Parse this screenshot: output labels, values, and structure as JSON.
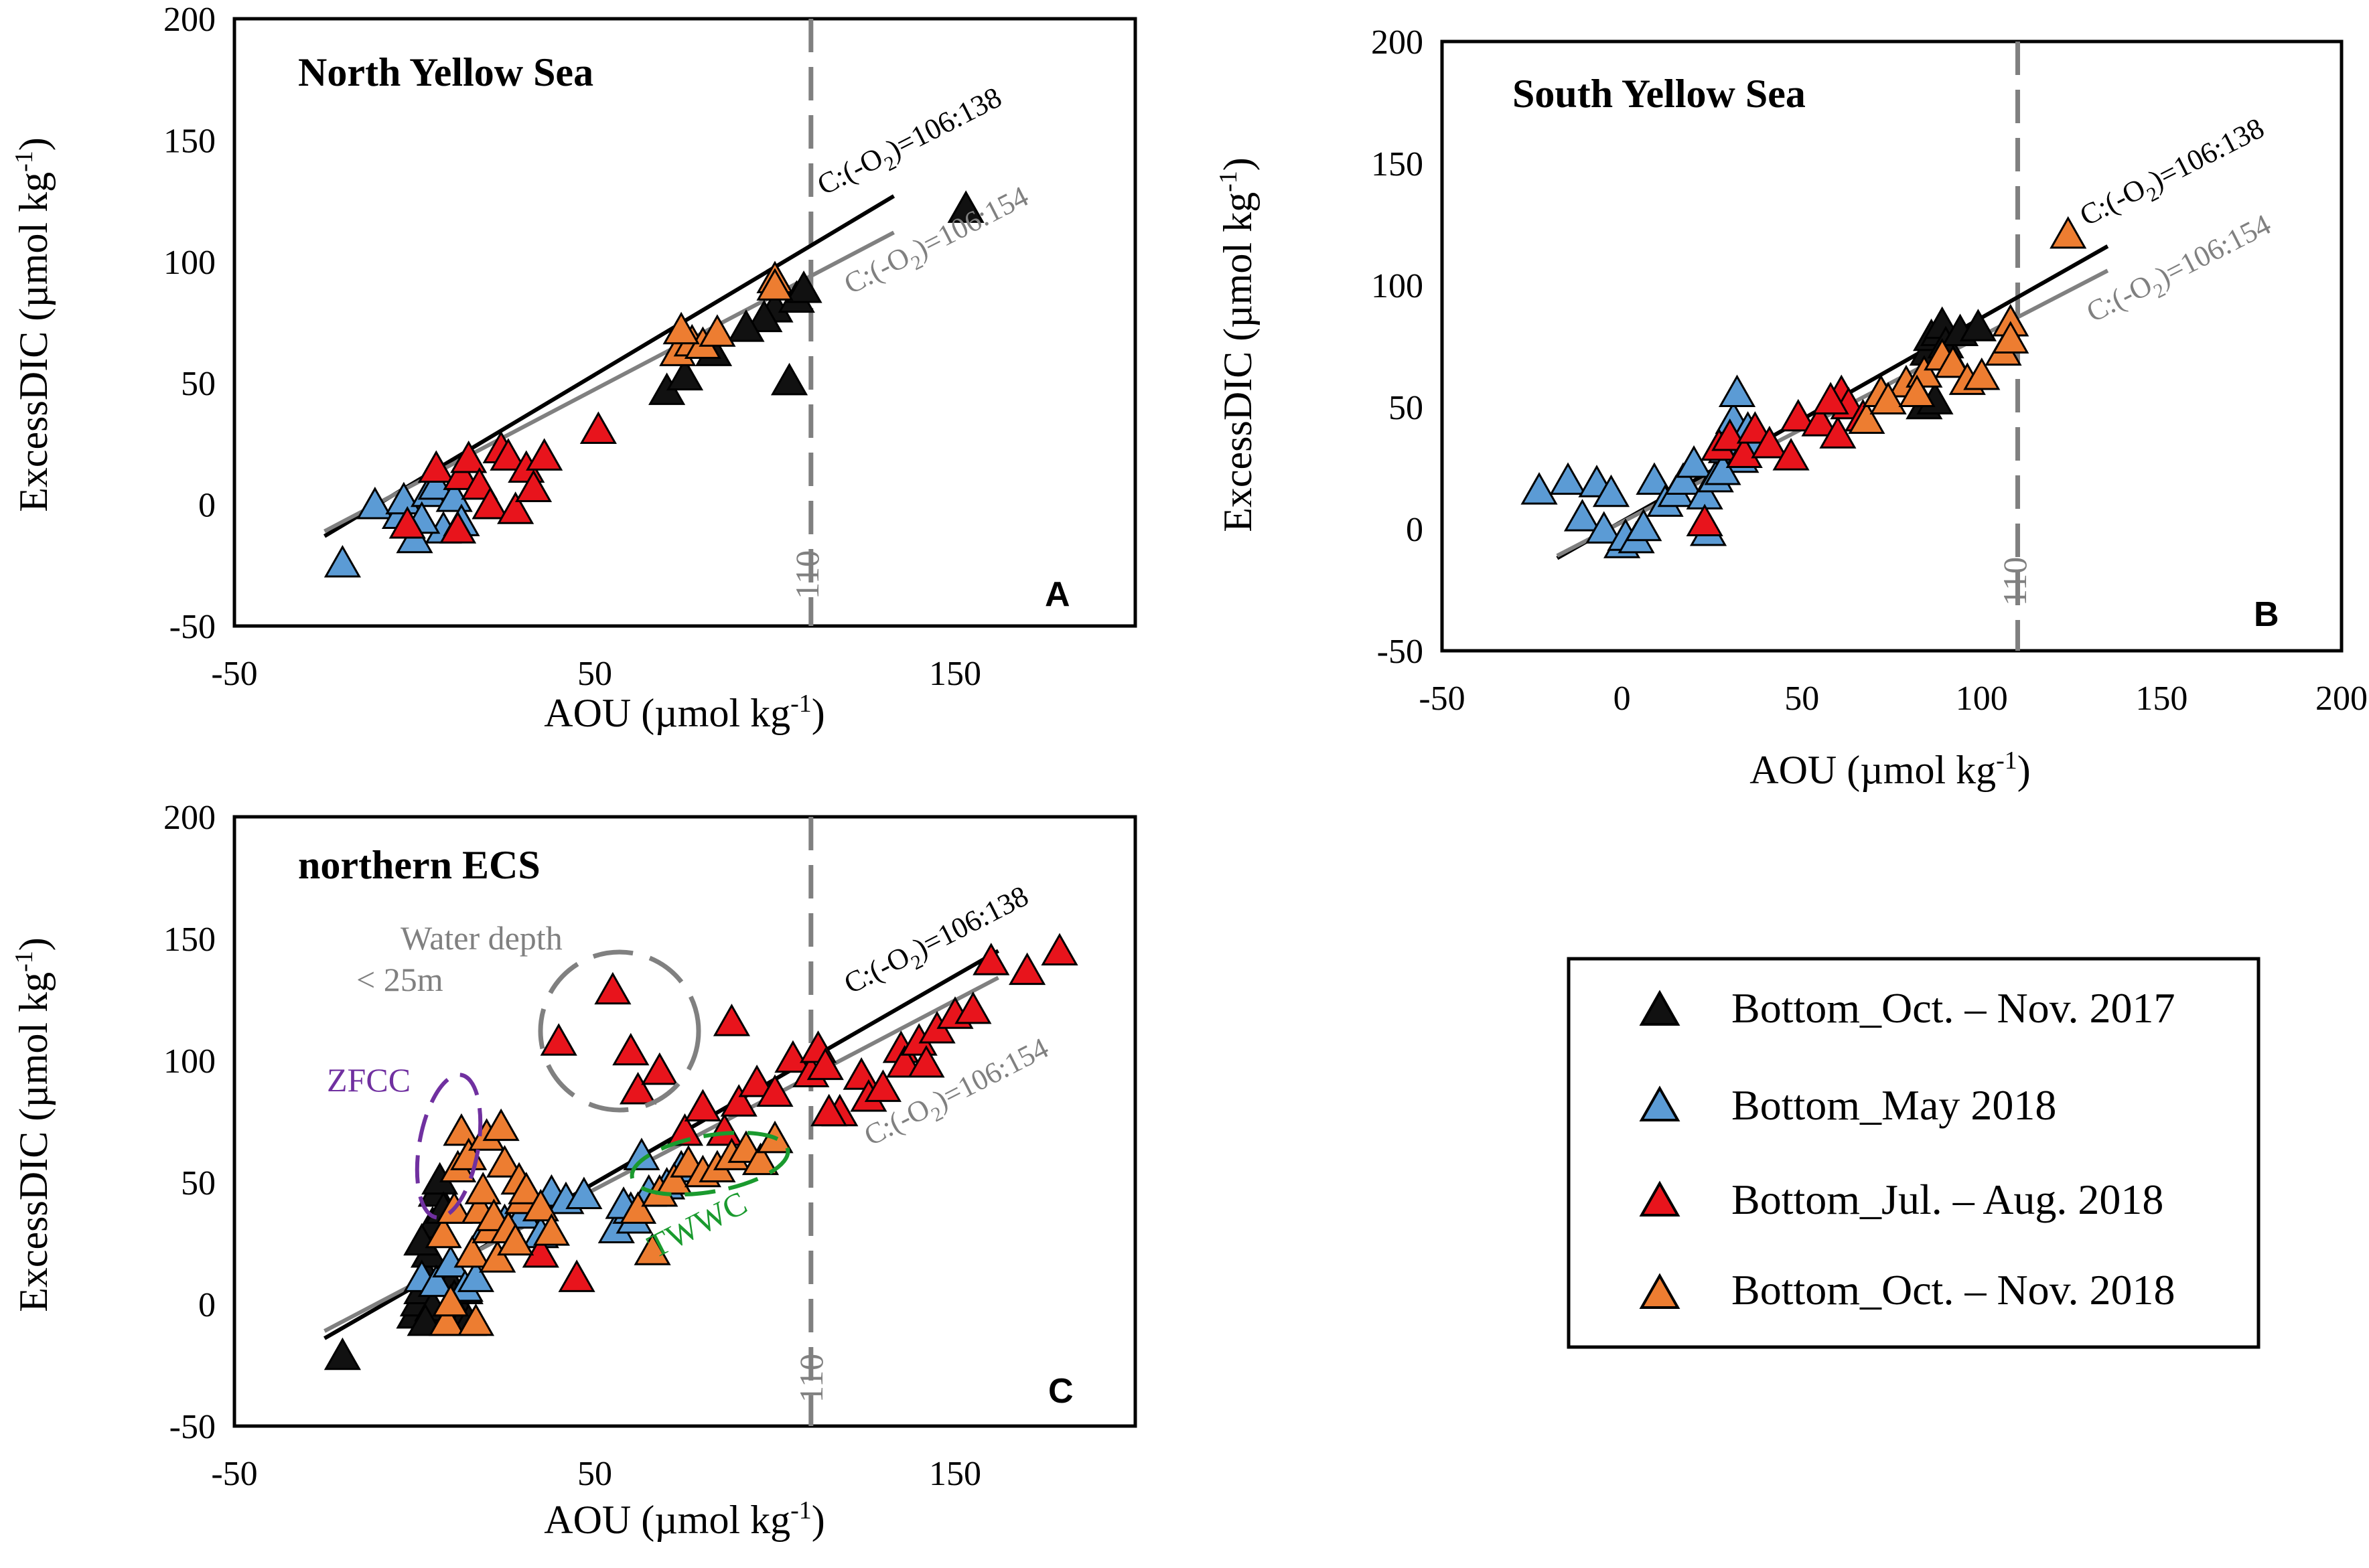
{
  "legend": {
    "items": [
      {
        "label": "Bottom_Oct. – Nov. 2017",
        "color": "#111111"
      },
      {
        "label": "Bottom_May 2018",
        "color": "#5b9bd5"
      },
      {
        "label": "Bottom_Jul. – Aug. 2018",
        "color": "#e8141c"
      },
      {
        "label": "Bottom_Oct. – Nov. 2018",
        "color": "#ed7d31"
      }
    ]
  },
  "chart_data": [
    {
      "type": "scatter",
      "title": "North Yellow Sea",
      "panel_label": "A",
      "xlabel": "AOU (µmol kg-1)",
      "ylabel": "ExcessDIC (µmol kg-1)",
      "xlim": [
        -50,
        200
      ],
      "ylim": [
        -50,
        200
      ],
      "xticks": [
        "-50",
        "50",
        "150"
      ],
      "yticks": [
        "-50",
        "0",
        "50",
        "100",
        "150",
        "200"
      ],
      "vline": {
        "x": 110,
        "label": "110"
      },
      "lines": [
        {
          "label": "C:(-O2)=106:138",
          "color": "#000000",
          "x": [
            -25,
            133
          ],
          "y": [
            -13,
            127
          ]
        },
        {
          "label": "C:(-O2)=106:154",
          "color": "#808080",
          "x": [
            -25,
            133
          ],
          "y": [
            -11,
            112
          ]
        }
      ],
      "series": [
        {
          "name": "Bottom_Oct. – Nov. 2017",
          "points": [
            [
              153,
              121
            ],
            [
              100,
              80
            ],
            [
              106,
              84
            ],
            [
              97,
              76
            ],
            [
              108,
              88
            ],
            [
              92,
              72
            ],
            [
              70,
              46
            ],
            [
              75,
              52
            ],
            [
              83,
              62
            ],
            [
              104,
              50
            ]
          ]
        },
        {
          "name": "Bottom_May 2018",
          "points": [
            [
              -20,
              -25
            ],
            [
              -11,
              -1
            ],
            [
              -4,
              -5
            ],
            [
              -3,
              1
            ],
            [
              0,
              -15
            ],
            [
              4,
              4
            ],
            [
              8,
              -11
            ],
            [
              2,
              -7
            ],
            [
              6,
              7
            ],
            [
              11,
              2
            ],
            [
              13,
              -8
            ]
          ]
        },
        {
          "name": "Bottom_Jul. – Aug. 2018",
          "points": [
            [
              -2,
              -9
            ],
            [
              6,
              14
            ],
            [
              12,
              -11
            ],
            [
              13,
              11
            ],
            [
              15,
              18
            ],
            [
              18,
              7
            ],
            [
              21,
              -1
            ],
            [
              24,
              22
            ],
            [
              26,
              19
            ],
            [
              28,
              -3
            ],
            [
              31,
              14
            ],
            [
              33,
              6
            ],
            [
              36,
              19
            ],
            [
              51,
              30
            ]
          ]
        },
        {
          "name": "Bottom_Oct. – Nov. 2018",
          "points": [
            [
              73,
              62
            ],
            [
              77,
              66
            ],
            [
              80,
              65
            ],
            [
              84,
              70
            ],
            [
              100,
              92
            ],
            [
              74,
              71
            ],
            [
              100,
              89
            ]
          ]
        }
      ]
    },
    {
      "type": "scatter",
      "title": "South Yellow Sea",
      "panel_label": "B",
      "xlabel": "AOU (µmol kg-1)",
      "ylabel": "ExcessDIC (µmol kg-1)",
      "xlim": [
        -50,
        200
      ],
      "ylim": [
        -50,
        200
      ],
      "xticks": [
        "-50",
        "0",
        "50",
        "100",
        "150",
        "200"
      ],
      "yticks": [
        "-50",
        "0",
        "50",
        "100",
        "150",
        "200"
      ],
      "vline": {
        "x": 110,
        "label": "110"
      },
      "lines": [
        {
          "label": "C:(-O2)=106:138",
          "color": "#000000",
          "x": [
            -18,
            135
          ],
          "y": [
            -12,
            116
          ]
        },
        {
          "label": "C:(-O2)=106:154",
          "color": "#808080",
          "x": [
            -18,
            135
          ],
          "y": [
            -11,
            106
          ]
        }
      ],
      "series": [
        {
          "name": "Bottom_Oct. – Nov. 2017",
          "points": [
            [
              85,
              72
            ],
            [
              86,
              78
            ],
            [
              88,
              80
            ],
            [
              89,
              83
            ],
            [
              90,
              75
            ],
            [
              91,
              70
            ],
            [
              94,
              80
            ],
            [
              99,
              82
            ],
            [
              84,
              50
            ],
            [
              87,
              52
            ]
          ]
        },
        {
          "name": "Bottom_May 2018",
          "points": [
            [
              -23,
              15
            ],
            [
              -15,
              19
            ],
            [
              -11,
              4
            ],
            [
              -7,
              18
            ],
            [
              -5,
              -1
            ],
            [
              -3,
              14
            ],
            [
              0,
              -7
            ],
            [
              1,
              -4
            ],
            [
              4,
              -5
            ],
            [
              6,
              0
            ],
            [
              9,
              19
            ],
            [
              12,
              10
            ],
            [
              15,
              14
            ],
            [
              17,
              19
            ],
            [
              20,
              26
            ],
            [
              23,
              13
            ],
            [
              26,
              20
            ],
            [
              29,
              32
            ],
            [
              31,
              44
            ],
            [
              32,
              55
            ],
            [
              35,
              40
            ],
            [
              33,
              28
            ],
            [
              24,
              -2
            ],
            [
              28,
              23
            ],
            [
              36,
              34
            ]
          ]
        },
        {
          "name": "Bottom_Jul. – Aug. 2018",
          "points": [
            [
              23,
              2
            ],
            [
              27,
              33
            ],
            [
              30,
              37
            ],
            [
              34,
              30
            ],
            [
              37,
              40
            ],
            [
              41,
              34
            ],
            [
              47,
              29
            ],
            [
              49,
              45
            ],
            [
              55,
              43
            ],
            [
              60,
              38
            ],
            [
              61,
              55
            ],
            [
              63,
              50
            ],
            [
              67,
              45
            ],
            [
              58,
              52
            ]
          ]
        },
        {
          "name": "Bottom_Oct. – Nov. 2018",
          "points": [
            [
              68,
              44
            ],
            [
              72,
              55
            ],
            [
              79,
              59
            ],
            [
              84,
              63
            ],
            [
              89,
              70
            ],
            [
              92,
              67
            ],
            [
              96,
              60
            ],
            [
              100,
              62
            ],
            [
              106,
              72
            ],
            [
              108,
              84
            ],
            [
              108,
              77
            ],
            [
              124,
              120
            ],
            [
              74,
              52
            ],
            [
              82,
              55
            ]
          ]
        }
      ]
    },
    {
      "type": "scatter",
      "title": "northern ECS",
      "panel_label": "C",
      "xlabel": "AOU (µmol kg-1)",
      "ylabel": "ExcessDIC (µmol kg-1)",
      "xlim": [
        -50,
        200
      ],
      "ylim": [
        -50,
        200
      ],
      "xticks": [
        "-50",
        "50",
        "150"
      ],
      "yticks": [
        "-50",
        "0",
        "50",
        "100",
        "150",
        "200"
      ],
      "vline": {
        "x": 110,
        "label": "110"
      },
      "lines": [
        {
          "label": "C:(-O2)=106:138",
          "color": "#000000",
          "x": [
            -25,
            162
          ],
          "y": [
            -14,
            145
          ]
        },
        {
          "label": "C:(-O2)=106:154",
          "color": "#808080",
          "x": [
            -25,
            162
          ],
          "y": [
            -11,
            134
          ]
        }
      ],
      "annotations": [
        {
          "text": "Water depth",
          "color": "#808080"
        },
        {
          "text": "< 25m",
          "color": "#808080"
        },
        {
          "text": "ZFCC",
          "color": "#7030a0"
        },
        {
          "text": "TWWC",
          "color": "#1a9a2e"
        }
      ],
      "series": [
        {
          "name": "Bottom_Oct. – Nov. 2017",
          "points": [
            [
              -20,
              -22
            ],
            [
              0,
              -5
            ],
            [
              1,
              0
            ],
            [
              2,
              5
            ],
            [
              3,
              12
            ],
            [
              4,
              20
            ],
            [
              5,
              32
            ],
            [
              6,
              45
            ],
            [
              7,
              50
            ],
            [
              8,
              38
            ],
            [
              9,
              -3
            ],
            [
              10,
              8
            ],
            [
              11,
              2
            ],
            [
              12,
              -5
            ],
            [
              5,
              -2
            ],
            [
              3,
              -8
            ],
            [
              13,
              -8
            ],
            [
              15,
              -8
            ],
            [
              14,
              5
            ],
            [
              2,
              25
            ]
          ]
        },
        {
          "name": "Bottom_May 2018",
          "points": [
            [
              2,
              10
            ],
            [
              6,
              8
            ],
            [
              10,
              16
            ],
            [
              14,
              6
            ],
            [
              17,
              10
            ],
            [
              20,
              30
            ],
            [
              25,
              33
            ],
            [
              30,
              36
            ],
            [
              35,
              28
            ],
            [
              38,
              45
            ],
            [
              42,
              42
            ],
            [
              47,
              44
            ],
            [
              56,
              30
            ],
            [
              60,
              38
            ],
            [
              65,
              45
            ],
            [
              63,
              60
            ],
            [
              58,
              40
            ],
            [
              70,
              48
            ],
            [
              74,
              55
            ],
            [
              61,
              34
            ]
          ]
        },
        {
          "name": "Bottom_Jul. – Aug. 2018",
          "points": [
            [
              35,
              20
            ],
            [
              40,
              107
            ],
            [
              45,
              10
            ],
            [
              55,
              128
            ],
            [
              60,
              103
            ],
            [
              62,
              87
            ],
            [
              68,
              95
            ],
            [
              75,
              70
            ],
            [
              80,
              80
            ],
            [
              86,
              70
            ],
            [
              88,
              115
            ],
            [
              90,
              82
            ],
            [
              95,
              90
            ],
            [
              100,
              86
            ],
            [
              105,
              100
            ],
            [
              110,
              94
            ],
            [
              112,
              104
            ],
            [
              114,
              97
            ],
            [
              118,
              78
            ],
            [
              124,
              93
            ],
            [
              126,
              84
            ],
            [
              130,
              88
            ],
            [
              135,
              104
            ],
            [
              136,
              98
            ],
            [
              140,
              107
            ],
            [
              142,
              98
            ],
            [
              145,
              112
            ],
            [
              150,
              118
            ],
            [
              155,
              120
            ],
            [
              160,
              140
            ],
            [
              170,
              136
            ],
            [
              179,
              144
            ],
            [
              115,
              78
            ]
          ]
        },
        {
          "name": "Bottom_Oct. – Nov. 2018",
          "points": [
            [
              8,
              28
            ],
            [
              9,
              -8
            ],
            [
              10,
              0
            ],
            [
              11,
              38
            ],
            [
              12,
              55
            ],
            [
              13,
              70
            ],
            [
              15,
              60
            ],
            [
              16,
              20
            ],
            [
              17,
              -8
            ],
            [
              18,
              38
            ],
            [
              19,
              46
            ],
            [
              20,
              68
            ],
            [
              21,
              30
            ],
            [
              22,
              35
            ],
            [
              23,
              18
            ],
            [
              24,
              72
            ],
            [
              25,
              57
            ],
            [
              26,
              30
            ],
            [
              28,
              25
            ],
            [
              29,
              50
            ],
            [
              30,
              42
            ],
            [
              31,
              46
            ],
            [
              35,
              39
            ],
            [
              38,
              29
            ],
            [
              62,
              38
            ],
            [
              66,
              21
            ],
            [
              68,
              45
            ],
            [
              72,
              50
            ],
            [
              76,
              57
            ],
            [
              80,
              53
            ],
            [
              84,
              55
            ],
            [
              88,
              60
            ],
            [
              92,
              63
            ],
            [
              96,
              58
            ],
            [
              100,
              67
            ]
          ]
        }
      ]
    }
  ]
}
